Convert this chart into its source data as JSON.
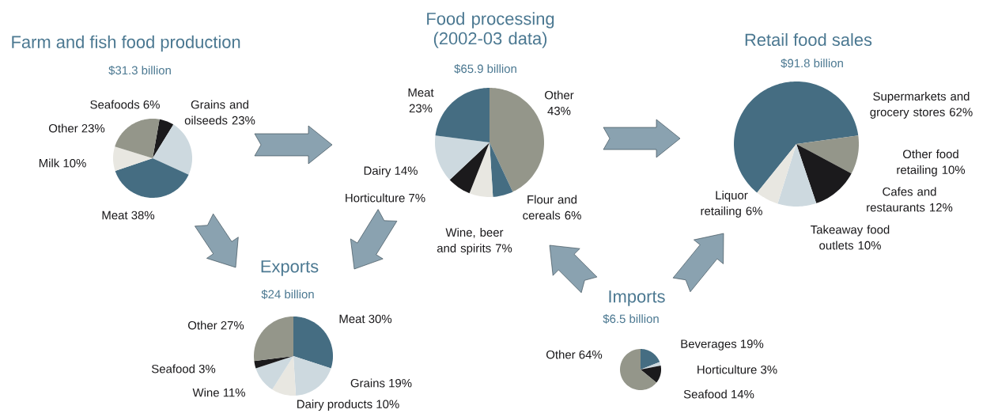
{
  "chart_data": [
    {
      "type": "pie",
      "title": "Farm and fish food production",
      "subtitle": "$31.3 billion",
      "categories": [
        "Seafoods",
        "Grains and oilseeds",
        "Meat",
        "Milk",
        "Other"
      ],
      "values": [
        6,
        23,
        38,
        10,
        23
      ],
      "value_labels": [
        "6%",
        "23%",
        "38%",
        "10%",
        "23%"
      ],
      "colors": [
        "#1b1a1c",
        "#cdd9df",
        "#456d82",
        "#e8e7e1",
        "#94968a"
      ]
    },
    {
      "type": "pie",
      "title": "Food processing (2002-03 data)",
      "subtitle": "$65.9 billion",
      "categories": [
        "Other",
        "Flour and cereals",
        "Wine, beer and spirits",
        "Horticulture",
        "Dairy",
        "Meat"
      ],
      "values": [
        43,
        6,
        7,
        7,
        14,
        23
      ],
      "value_labels": [
        "43%",
        "6%",
        "7%",
        "7%",
        "14%",
        "23%"
      ],
      "colors": [
        "#94968a",
        "#456d82",
        "#e8e7e1",
        "#1b1a1c",
        "#cdd9df",
        "#456d82"
      ]
    },
    {
      "type": "pie",
      "title": "Retail food sales",
      "subtitle": "$91.8 billion",
      "categories": [
        "Supermarkets and grocery stores",
        "Other food retailing",
        "Cafes and restaurants",
        "Takeaway food outlets",
        "Liquor retailing"
      ],
      "values": [
        62,
        10,
        12,
        10,
        6
      ],
      "value_labels": [
        "62%",
        "10%",
        "12%",
        "10%",
        "6%"
      ],
      "colors": [
        "#456d82",
        "#94968a",
        "#1b1a1c",
        "#cdd9df",
        "#e8e7e1"
      ]
    },
    {
      "type": "pie",
      "title": "Exports",
      "subtitle": "$24 billion",
      "categories": [
        "Meat",
        "Grains",
        "Dairy products",
        "Wine",
        "Seafood",
        "Other"
      ],
      "values": [
        30,
        19,
        10,
        11,
        3,
        27
      ],
      "value_labels": [
        "30%",
        "19%",
        "10%",
        "11%",
        "3%",
        "27%"
      ],
      "colors": [
        "#456d82",
        "#cdd9df",
        "#e8e7e1",
        "#cdd9df",
        "#1b1a1c",
        "#94968a"
      ]
    },
    {
      "type": "pie",
      "title": "Imports",
      "subtitle": "$6.5 billion",
      "categories": [
        "Beverages",
        "Horticulture",
        "Seafood",
        "Other"
      ],
      "values": [
        19,
        3,
        14,
        64
      ],
      "value_labels": [
        "19%",
        "3%",
        "14%",
        "64%"
      ],
      "colors": [
        "#456d82",
        "#cdd9df",
        "#1b1a1c",
        "#94968a"
      ]
    }
  ]
}
